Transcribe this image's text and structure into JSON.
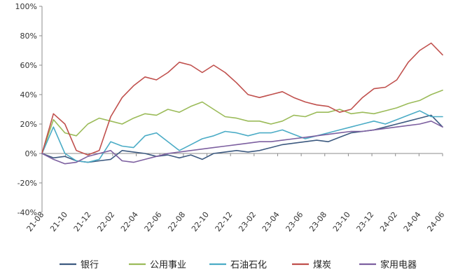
{
  "chart_data": {
    "type": "line",
    "title": "",
    "xlabel": "",
    "ylabel": "",
    "y_unit": "%",
    "ylim": [
      -40,
      100
    ],
    "y_ticks": [
      -40,
      -20,
      0,
      20,
      40,
      60,
      80,
      100
    ],
    "y_tick_labels": [
      "-40%",
      "-20%",
      "0%",
      "20%",
      "40%",
      "60%",
      "80%",
      "100%"
    ],
    "x_tick_labels": [
      "21-08",
      "21-10",
      "21-12",
      "22-02",
      "22-04",
      "22-06",
      "22-08",
      "22-10",
      "22-12",
      "23-02",
      "23-04",
      "23-06",
      "23-08",
      "23-10",
      "23-12",
      "24-02",
      "24-04",
      "24-06"
    ],
    "x_range": [
      0,
      35
    ],
    "grid": false,
    "legend_position": "bottom",
    "x": [
      0,
      1,
      2,
      3,
      4,
      5,
      6,
      7,
      8,
      9,
      10,
      11,
      12,
      13,
      14,
      15,
      16,
      17,
      18,
      19,
      20,
      21,
      22,
      23,
      24,
      25,
      26,
      27,
      28,
      29,
      30,
      31,
      32,
      33,
      34,
      35
    ],
    "series": [
      {
        "name": "银行",
        "color": "#3d5a80",
        "values": [
          0,
          -3,
          -2,
          -5,
          -6,
          -5,
          -4,
          2,
          1,
          0,
          -2,
          -1,
          -3,
          -1,
          -4,
          0,
          1,
          2,
          1,
          2,
          4,
          6,
          7,
          8,
          9,
          8,
          11,
          14,
          15,
          16,
          18,
          20,
          22,
          24,
          26,
          18
        ]
      },
      {
        "name": "公用事业",
        "color": "#9bbb59",
        "values": [
          0,
          23,
          14,
          12,
          20,
          24,
          22,
          20,
          24,
          27,
          26,
          30,
          28,
          32,
          35,
          30,
          25,
          24,
          22,
          22,
          20,
          22,
          26,
          25,
          28,
          28,
          30,
          27,
          28,
          27,
          29,
          31,
          34,
          36,
          40,
          43
        ]
      },
      {
        "name": "石油石化",
        "color": "#4bacc6",
        "values": [
          0,
          18,
          0,
          -5,
          -6,
          -4,
          8,
          5,
          4,
          12,
          14,
          8,
          2,
          6,
          10,
          12,
          15,
          14,
          12,
          14,
          14,
          16,
          13,
          10,
          12,
          14,
          16,
          18,
          20,
          22,
          20,
          23,
          26,
          29,
          25,
          25
        ]
      },
      {
        "name": "煤炭",
        "color": "#c0504d",
        "values": [
          0,
          27,
          20,
          2,
          -1,
          2,
          25,
          38,
          46,
          52,
          50,
          55,
          62,
          60,
          55,
          60,
          55,
          48,
          40,
          38,
          40,
          42,
          38,
          35,
          33,
          32,
          28,
          30,
          38,
          44,
          45,
          50,
          62,
          70,
          75,
          67
        ]
      },
      {
        "name": "家用电器",
        "color": "#7d60a0",
        "values": [
          0,
          -4,
          -7,
          -6,
          -2,
          0,
          2,
          -5,
          -6,
          -4,
          -2,
          0,
          1,
          2,
          3,
          4,
          5,
          6,
          7,
          8,
          8,
          9,
          10,
          11,
          12,
          13,
          14,
          15,
          15,
          16,
          17,
          18,
          19,
          20,
          22,
          18
        ]
      }
    ]
  }
}
